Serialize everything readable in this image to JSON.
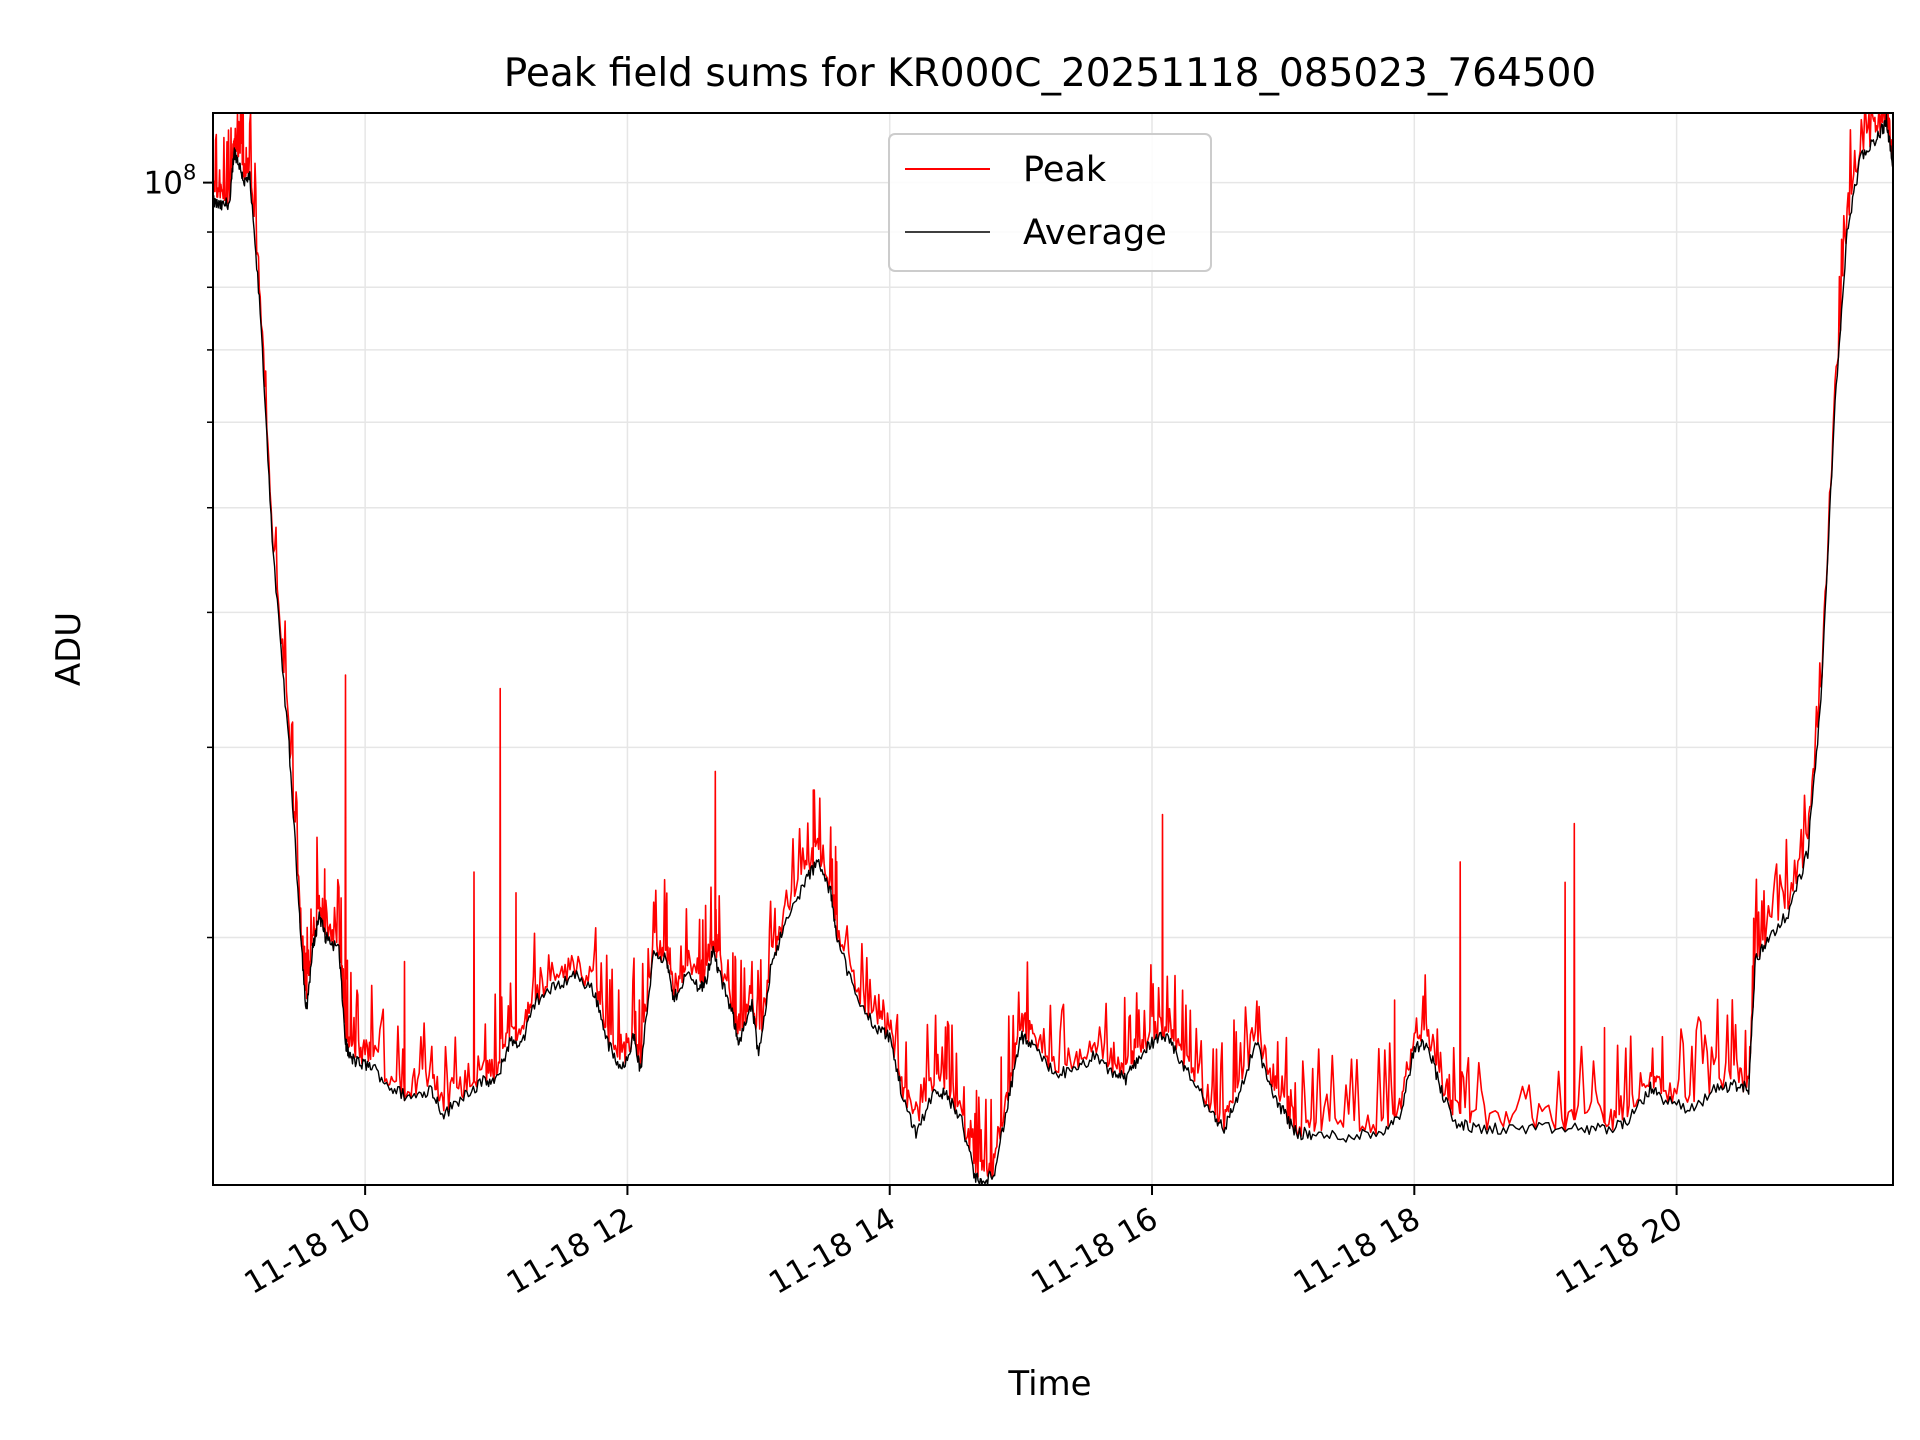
{
  "chart_data": {
    "type": "line",
    "title": "Peak field sums for KR000C_20251118_085023_764500",
    "xlabel": "Time",
    "ylabel": "ADU",
    "yscale": "log",
    "xlim": [
      8.84,
      21.65
    ],
    "ylim": [
      11800000.0,
      116000000.0
    ],
    "grid": true,
    "legend_position": "top-center",
    "x_ticks": [
      {
        "value": 10,
        "label": "11-18 10"
      },
      {
        "value": 12,
        "label": "11-18 12"
      },
      {
        "value": 14,
        "label": "11-18 14"
      },
      {
        "value": 16,
        "label": "11-18 16"
      },
      {
        "value": 18,
        "label": "11-18 18"
      },
      {
        "value": 20,
        "label": "11-18 20"
      }
    ],
    "y_major_ticks": [
      {
        "value": 100000000,
        "label_base": "10",
        "label_exp": "8"
      }
    ],
    "y_minor_ticks": [
      20000000,
      30000000,
      40000000,
      50000000,
      60000000,
      70000000,
      80000000,
      90000000
    ],
    "series": [
      {
        "name": "Peak",
        "color": "#ff0000"
      },
      {
        "name": "Average",
        "color": "#000000"
      }
    ],
    "average": {
      "x": [
        8.84,
        8.9,
        8.97,
        9.0,
        9.04,
        9.08,
        9.12,
        9.2,
        9.3,
        9.42,
        9.5,
        9.55,
        9.6,
        9.65,
        9.7,
        9.8,
        9.85,
        9.88,
        9.95,
        10.05,
        10.2,
        10.35,
        10.5,
        10.6,
        10.75,
        10.9,
        11.0,
        11.1,
        11.2,
        11.3,
        11.45,
        11.6,
        11.75,
        11.85,
        11.95,
        12.05,
        12.1,
        12.2,
        12.3,
        12.35,
        12.45,
        12.55,
        12.6,
        12.65,
        12.7,
        12.8,
        12.85,
        12.95,
        13.0,
        13.1,
        13.2,
        13.35,
        13.45,
        13.55,
        13.6,
        13.75,
        13.9,
        14.0,
        14.1,
        14.2,
        14.35,
        14.45,
        14.55,
        14.65,
        14.72,
        14.8,
        14.9,
        15.0,
        15.1,
        15.25,
        15.4,
        15.55,
        15.7,
        15.8,
        15.9,
        16.0,
        16.1,
        16.2,
        16.3,
        16.45,
        16.55,
        16.65,
        16.8,
        16.9,
        17.0,
        17.1,
        17.25,
        17.5,
        17.75,
        17.9,
        18.0,
        18.1,
        18.2,
        18.3,
        18.45,
        18.7,
        19.0,
        19.3,
        19.5,
        19.65,
        19.8,
        19.9,
        20.1,
        20.3,
        20.45,
        20.55,
        20.6,
        20.7,
        20.85,
        21.0,
        21.1,
        21.2,
        21.3,
        21.4,
        21.5,
        21.57,
        21.6,
        21.65
      ],
      "y": [
        96000000.0,
        95000000.0,
        96000000.0,
        107000000.0,
        104000000.0,
        100000000.0,
        101000000.0,
        76000000.0,
        45000000.0,
        30000000.0,
        21000000.0,
        17000000.0,
        19500000.0,
        21000000.0,
        20000000.0,
        19500000.0,
        16000000.0,
        15500000.0,
        15300000.0,
        15200000.0,
        14500000.0,
        14200000.0,
        14500000.0,
        13700000.0,
        14300000.0,
        14700000.0,
        14700000.0,
        16000000.0,
        16000000.0,
        17500000.0,
        18000000.0,
        18500000.0,
        17800000.0,
        16000000.0,
        15000000.0,
        16200000.0,
        15000000.0,
        19500000.0,
        19000000.0,
        17500000.0,
        18500000.0,
        18000000.0,
        18200000.0,
        19500000.0,
        18500000.0,
        17000000.0,
        16000000.0,
        17300000.0,
        15500000.0,
        19000000.0,
        20500000.0,
        22500000.0,
        23500000.0,
        22000000.0,
        20000000.0,
        17500000.0,
        16500000.0,
        16200000.0,
        14200000.0,
        13200000.0,
        14500000.0,
        14200000.0,
        13500000.0,
        12000000.0,
        11800000.0,
        12200000.0,
        14000000.0,
        16200000.0,
        15800000.0,
        15000000.0,
        15000000.0,
        15500000.0,
        15000000.0,
        14800000.0,
        15500000.0,
        16000000.0,
        16200000.0,
        15500000.0,
        14800000.0,
        13800000.0,
        13300000.0,
        14200000.0,
        16000000.0,
        14500000.0,
        13800000.0,
        13200000.0,
        13100000.0,
        13100000.0,
        13200000.0,
        13800000.0,
        15800000.0,
        16000000.0,
        14500000.0,
        13500000.0,
        13300000.0,
        13300000.0,
        13300000.0,
        13300000.0,
        13300000.0,
        13600000.0,
        14500000.0,
        14200000.0,
        13800000.0,
        14500000.0,
        14600000.0,
        14500000.0,
        19000000.0,
        20000000.0,
        21000000.0,
        24000000.0,
        33000000.0,
        60000000.0,
        90000000.0,
        105000000.0,
        109000000.0,
        112000000.0,
        114000000.0,
        104000000.0
      ]
    },
    "peak_spikes": [
      {
        "x": 9.85,
        "y": 35000000.0
      },
      {
        "x": 10.3,
        "y": 19000000.0
      },
      {
        "x": 10.83,
        "y": 23000000.0
      },
      {
        "x": 11.03,
        "y": 34000000.0
      },
      {
        "x": 11.15,
        "y": 22000000.0
      },
      {
        "x": 12.67,
        "y": 28500000.0
      },
      {
        "x": 13.42,
        "y": 24500000.0
      },
      {
        "x": 14.85,
        "y": 15500000.0
      },
      {
        "x": 16.08,
        "y": 26000000.0
      },
      {
        "x": 17.85,
        "y": 17500000.0
      },
      {
        "x": 18.35,
        "y": 23500000.0
      },
      {
        "x": 19.15,
        "y": 22500000.0
      },
      {
        "x": 19.22,
        "y": 25500000.0
      },
      {
        "x": 19.45,
        "y": 16500000.0
      }
    ]
  },
  "legend": {
    "peak_label": "Peak",
    "average_label": "Average"
  }
}
